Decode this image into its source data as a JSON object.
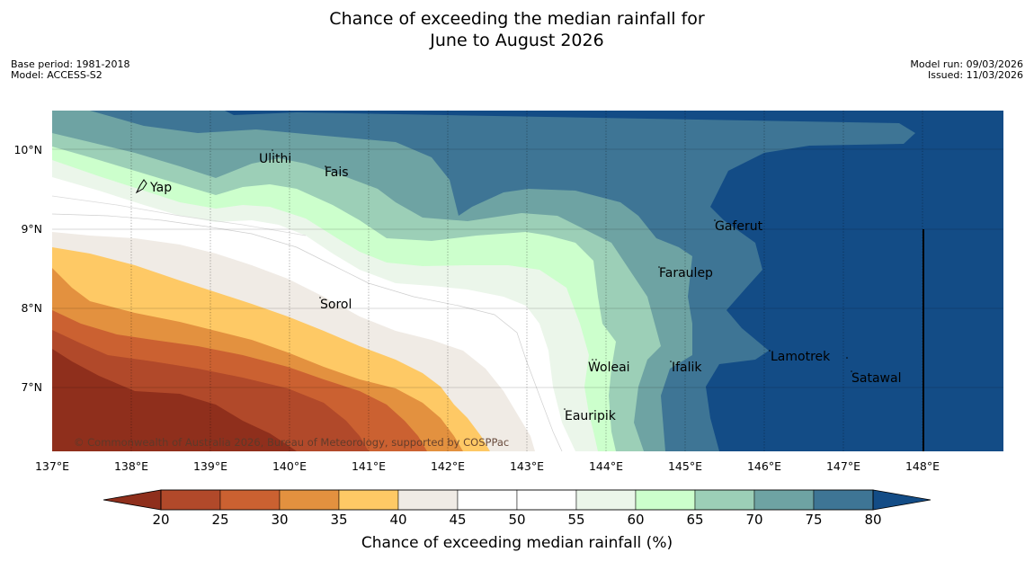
{
  "title": {
    "line1": "Chance of exceeding the median rainfall for",
    "line2": "June to August 2026"
  },
  "meta_left": {
    "base_period": "Base period: 1981-2018",
    "model": "Model: ACCESS-S2"
  },
  "meta_right": {
    "model_run": "Model run: 09/03/2026",
    "issued": "Issued: 11/03/2026"
  },
  "map": {
    "lon_labels": [
      "137°E",
      "138°E",
      "139°E",
      "140°E",
      "141°E",
      "142°E",
      "143°E",
      "144°E",
      "145°E",
      "146°E",
      "147°E",
      "148°E"
    ],
    "lat_labels": [
      "10°N",
      "9°N",
      "8°N",
      "7°N"
    ],
    "places": [
      "Yap",
      "Ulithi",
      "Fais",
      "Gaferut",
      "Faraulep",
      "Sorol",
      "Woleai",
      "Ifalik",
      "Lamotrek",
      "Satawal",
      "Eauripik"
    ],
    "copyright": "© Commonwealth of Australia 2026, Bureau of Meteorology, supported by COSPPac"
  },
  "colorbar": {
    "ticks": [
      "20",
      "25",
      "30",
      "35",
      "40",
      "45",
      "50",
      "55",
      "60",
      "65",
      "70",
      "75",
      "80"
    ],
    "colors": [
      "#8f2f1c",
      "#b1492a",
      "#cb6131",
      "#e3913f",
      "#fec965",
      "#f0ebe5",
      "#ffffff",
      "#ffffff",
      "#ebf6ea",
      "#ccffcc",
      "#9ccfb7",
      "#6ea3a3",
      "#3e7595",
      "#134c86"
    ],
    "label": "Chance of exceeding median rainfall (%)"
  }
}
